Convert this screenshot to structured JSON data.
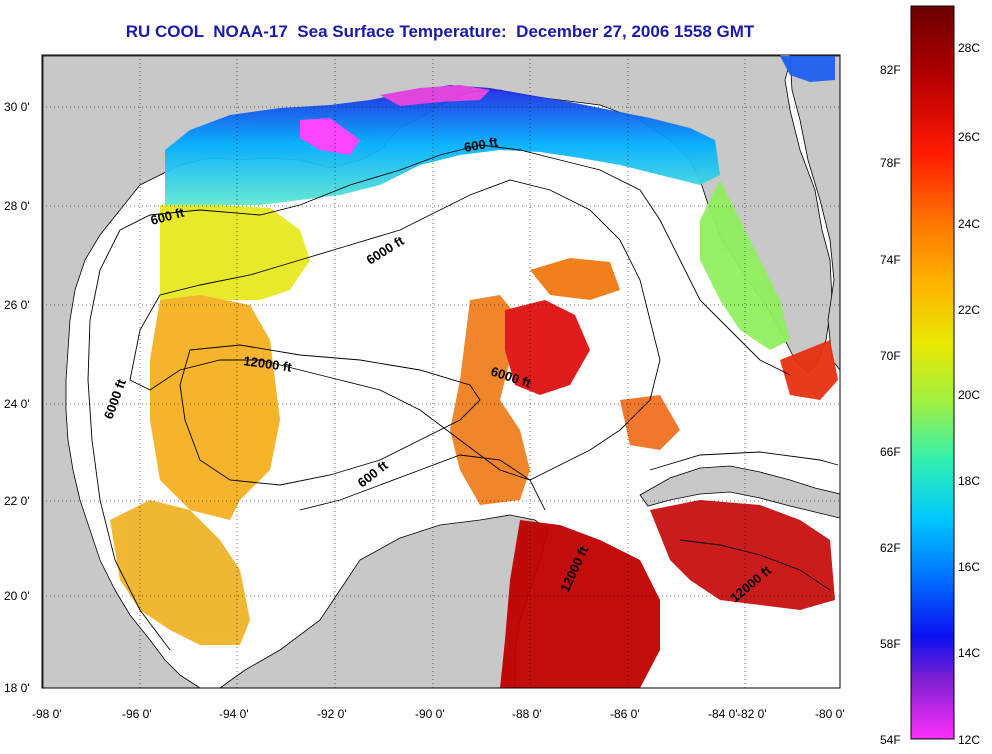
{
  "title": "RU COOL  NOAA-17  Sea Surface Temperature:  December 27, 2006 1558 GMT",
  "axes": {
    "lon_ticks": [
      "-98 0'",
      "-96 0'",
      "-94 0'",
      "-92 0'",
      "-90 0'",
      "-88 0'",
      "-86 0'",
      "-84 0'",
      "-82 0'",
      "-80 0'"
    ],
    "lat_ticks": [
      "30 0'",
      "28 0'",
      "26 0'",
      "24 0'",
      "22 0'",
      "20 0'",
      "18 0'"
    ]
  },
  "contours": {
    "labels": [
      "600 ft",
      "600 ft",
      "6000 ft",
      "12000 ft",
      "6000 ft",
      "6000 ft",
      "600 ft",
      "12000 ft",
      "12000 ft"
    ]
  },
  "colorbar": {
    "fahrenheit_labels": [
      "82F",
      "78F",
      "74F",
      "70F",
      "66F",
      "62F",
      "58F",
      "54F"
    ],
    "celsius_labels": [
      "28C",
      "26C",
      "24C",
      "22C",
      "20C",
      "18C",
      "16C",
      "14C",
      "12C"
    ],
    "colors": [
      "#8b0000",
      "#d40000",
      "#ff2a00",
      "#ff7a00",
      "#ffb400",
      "#f2e600",
      "#a0f040",
      "#30f0c0",
      "#00c8ff",
      "#0060ff",
      "#1010e0",
      "#9020d0",
      "#ff40ff"
    ]
  },
  "colors": {
    "land": "#c8c8c8",
    "ocean_masked": "#ffffff",
    "title": "#1a1aa8"
  }
}
